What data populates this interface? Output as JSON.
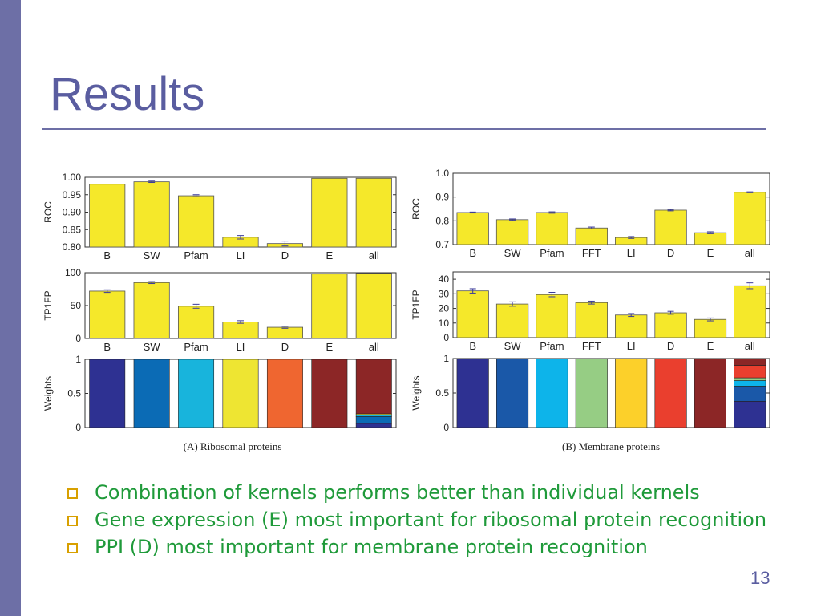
{
  "slide": {
    "title": "Results",
    "page_number": "13"
  },
  "bullets": [
    "Combination of kernels performs better than individual kernels",
    "Gene expression (E) most important for ribosomal protein recognition",
    "PPI (D) most important for membrane protein recognition"
  ],
  "colors": {
    "bar": "#f5e82a",
    "error": "#3a3a9a",
    "sidebar": "#6d6fa6",
    "title": "#5a5da0",
    "bullet_text": "#1f9a3a"
  },
  "chart_data": [
    {
      "panel": "A",
      "caption": "(A) Ribosomal proteins",
      "categories": [
        "B",
        "SW",
        "Pfam",
        "LI",
        "D",
        "E",
        "all"
      ],
      "roc": {
        "type": "bar",
        "ylabel": "ROC",
        "ylim": [
          0.8,
          1.0
        ],
        "ticks": [
          "1.00",
          "0.95",
          "0.90",
          "0.85",
          "0.80"
        ],
        "tick_values": [
          1.0,
          0.95,
          0.9,
          0.85,
          0.8
        ],
        "values": [
          0.98,
          0.987,
          0.947,
          0.828,
          0.81
        ],
        "errors": [
          0.0,
          0.002,
          0.003,
          0.005,
          0.007
        ],
        "extra_values": [
          0.997,
          0.997
        ]
      },
      "tp1fp": {
        "type": "bar",
        "ylabel": "TP1FP",
        "ylim": [
          0,
          100
        ],
        "ticks": [
          "100",
          "50",
          "0"
        ],
        "tick_values": [
          100,
          50,
          0
        ],
        "values": [
          72,
          85,
          49,
          25,
          17,
          98,
          99
        ],
        "errors": [
          2,
          1.5,
          3,
          2,
          1.5,
          0,
          0
        ]
      },
      "weights": {
        "type": "bar",
        "ylabel": "Weights",
        "ylim": [
          0,
          1
        ],
        "ticks": [
          "1",
          "0.5",
          "0"
        ],
        "tick_values": [
          1,
          0.5,
          0
        ],
        "colors": [
          "#2e3192",
          "#0b6bb5",
          "#18b4dc",
          "#eee532",
          "#ef6630",
          "#8c2626",
          "#8c2626"
        ],
        "all_stack": [
          {
            "value": 0.06,
            "color": "#2e3192"
          },
          {
            "value": 0.1,
            "color": "#0b6bb5"
          },
          {
            "value": 0.02,
            "color": "#18b4dc"
          },
          {
            "value": 0.02,
            "color": "#eee532"
          },
          {
            "value": 0.8,
            "color": "#8c2626"
          }
        ]
      }
    },
    {
      "panel": "B",
      "caption": "(B) Membrane proteins",
      "categories": [
        "B",
        "SW",
        "Pfam",
        "FFT",
        "LI",
        "D",
        "E",
        "all"
      ],
      "roc": {
        "type": "bar",
        "ylabel": "ROC",
        "ylim": [
          0.7,
          1.0
        ],
        "ticks": [
          "1.0",
          "0.9",
          "0.8",
          "0.7"
        ],
        "tick_values": [
          1.0,
          0.9,
          0.8,
          0.7
        ],
        "values": [
          0.835,
          0.805,
          0.835,
          0.77,
          0.73,
          0.845,
          0.75,
          0.92
        ],
        "errors": [
          0.002,
          0.003,
          0.003,
          0.004,
          0.004,
          0.003,
          0.004,
          0.002
        ]
      },
      "tp1fp": {
        "type": "bar",
        "ylabel": "TP1FP",
        "ylim": [
          0,
          45
        ],
        "ticks": [
          "40",
          "30",
          "20",
          "10",
          "0"
        ],
        "tick_values": [
          40,
          30,
          20,
          10,
          0
        ],
        "values": [
          32,
          23,
          29.5,
          24,
          15.5,
          17,
          12.5,
          35.5
        ],
        "errors": [
          1.5,
          1.5,
          1.5,
          1,
          1,
          1,
          1,
          2
        ]
      },
      "weights": {
        "type": "bar",
        "ylabel": "Weights",
        "ylim": [
          0,
          1
        ],
        "ticks": [
          "1",
          "0.5",
          "0"
        ],
        "tick_values": [
          1,
          0.5,
          0
        ],
        "colors": [
          "#2e3192",
          "#1a58a8",
          "#0db4ea",
          "#96cd84",
          "#fcd02a",
          "#ea3f2e",
          "#8c2626",
          "#8c2626"
        ],
        "all_stack": [
          {
            "value": 0.38,
            "color": "#2e3192"
          },
          {
            "value": 0.22,
            "color": "#1a58a8"
          },
          {
            "value": 0.08,
            "color": "#0db4ea"
          },
          {
            "value": 0.04,
            "color": "#96cd84"
          },
          {
            "value": 0.18,
            "color": "#ea3f2e"
          },
          {
            "value": 0.1,
            "color": "#8c2626"
          }
        ]
      }
    }
  ]
}
